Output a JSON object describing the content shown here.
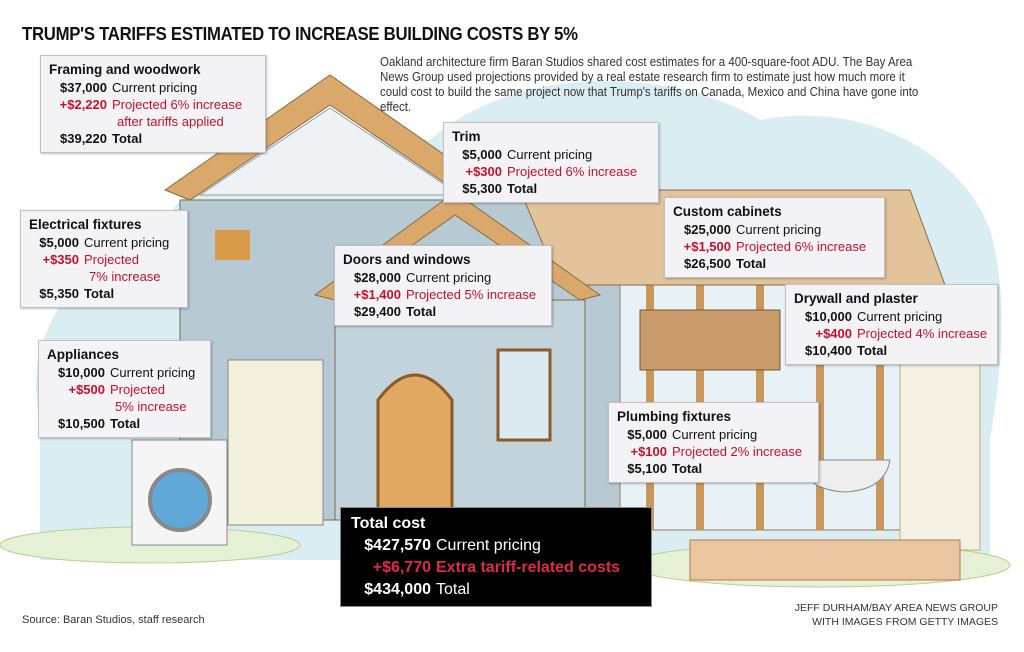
{
  "title": "TRUMP'S TARIFFS ESTIMATED TO INCREASE BUILDING COSTS BY 5%",
  "intro": "Oakland architecture firm Baran Studios shared cost estimates for a 400-square-foot ADU. The Bay Area News Group used projections provided by a real estate research firm to estimate just how much more it could cost to build the same project now that Trump's tariffs on Canada, Mexico and China have gone into effect.",
  "items": {
    "framing": {
      "title": "Framing and woodwork",
      "current": "$37,000",
      "current_label": "Current pricing",
      "increase": "+$2,220",
      "increase_label": "Projected 6% increase",
      "increase_label2": "after tariffs applied",
      "total": "$39,220",
      "total_label": "Total"
    },
    "electrical": {
      "title": "Electrical fixtures",
      "current": "$5,000",
      "current_label": "Current pricing",
      "increase": "+$350",
      "increase_label": "Projected",
      "increase_label2": "7% increase",
      "total": "$5,350",
      "total_label": "Total"
    },
    "appliances": {
      "title": "Appliances",
      "current": "$10,000",
      "current_label": "Current pricing",
      "increase": "+$500",
      "increase_label": "Projected",
      "increase_label2": "5% increase",
      "total": "$10,500",
      "total_label": "Total"
    },
    "trim": {
      "title": "Trim",
      "current": "$5,000",
      "current_label": "Current pricing",
      "increase": "+$300",
      "increase_label": "Projected 6% increase",
      "total": "$5,300",
      "total_label": "Total"
    },
    "doors": {
      "title": "Doors and windows",
      "current": "$28,000",
      "current_label": "Current pricing",
      "increase": "+$1,400",
      "increase_label": "Projected 5% increase",
      "total": "$29,400",
      "total_label": "Total"
    },
    "cabinets": {
      "title": "Custom cabinets",
      "current": "$25,000",
      "current_label": "Current pricing",
      "increase": "+$1,500",
      "increase_label": "Projected 6% increase",
      "total": "$26,500",
      "total_label": "Total"
    },
    "drywall": {
      "title": "Drywall and plaster",
      "current": "$10,000",
      "current_label": "Current pricing",
      "increase": "+$400",
      "increase_label": "Projected 4% increase",
      "total": "$10,400",
      "total_label": "Total"
    },
    "plumbing": {
      "title": "Plumbing fixtures",
      "current": "$5,000",
      "current_label": "Current pricing",
      "increase": "+$100",
      "increase_label": "Projected 2% increase",
      "total": "$5,100",
      "total_label": "Total"
    }
  },
  "total": {
    "title": "Total cost",
    "current": "$427,570",
    "current_label": "Current pricing",
    "increase": "+$6,770",
    "increase_label": "Extra tariff-related costs",
    "total": "$434,000",
    "total_label": "Total"
  },
  "source": "Source: Baran Studios, staff research",
  "credit_line1": "JEFF DURHAM/BAY AREA NEWS GROUP",
  "credit_line2": "WITH IMAGES FROM GETTY IMAGES",
  "colors": {
    "increase_red": "#c8102e",
    "sky": "#d6ebf2",
    "wood": "#d9a86a",
    "ground": "#e6f0d4"
  }
}
